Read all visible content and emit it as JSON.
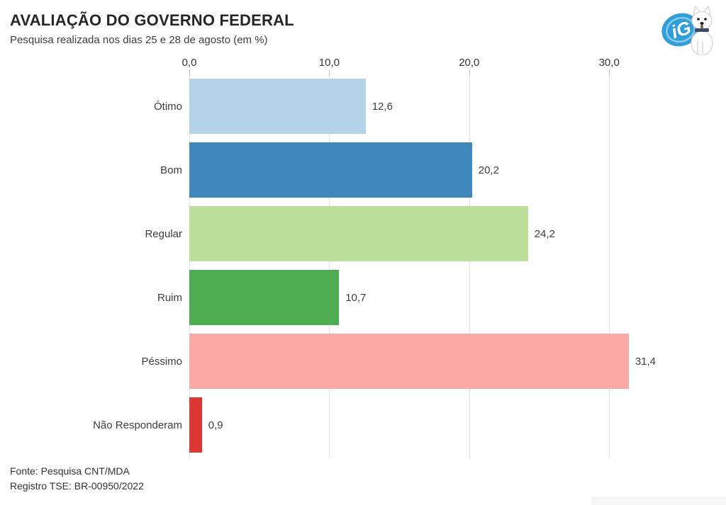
{
  "header": {
    "title": "AVALIAÇÃO DO GOVERNO FEDERAL",
    "subtitle": "Pesquisa realizada nos dias 25 e 28 de agosto (em %)"
  },
  "logo": {
    "name": "ig-logo",
    "brand_color": "#2f9ed9"
  },
  "chart_data": {
    "type": "bar",
    "orientation": "horizontal",
    "title": "AVALIAÇÃO DO GOVERNO FEDERAL",
    "subtitle": "Pesquisa realizada nos dias 25 e 28 de agosto (em %)",
    "categories": [
      "Ótimo",
      "Bom",
      "Regular",
      "Ruim",
      "Péssimo",
      "Não Responderam"
    ],
    "values": [
      12.6,
      20.2,
      24.2,
      10.7,
      31.4,
      0.9
    ],
    "value_labels": [
      "12,6",
      "20,2",
      "24,2",
      "10,7",
      "31,4",
      "0,9"
    ],
    "bar_colors": [
      "#b5d4e9",
      "#3e88bb",
      "#bce09c",
      "#4fad51",
      "#fba8a7",
      "#dd3733"
    ],
    "x_tick_values": [
      0,
      10,
      20,
      30
    ],
    "x_tick_labels": [
      "0,0",
      "10,0",
      "20,0",
      "30,0"
    ],
    "xlim": [
      0,
      30
    ],
    "grid": true,
    "legend": false,
    "axis_position": "top"
  },
  "footer": {
    "source": "Fonte: Pesquisa CNT/MDA",
    "registry": "Registro TSE: BR-00950/2022"
  }
}
